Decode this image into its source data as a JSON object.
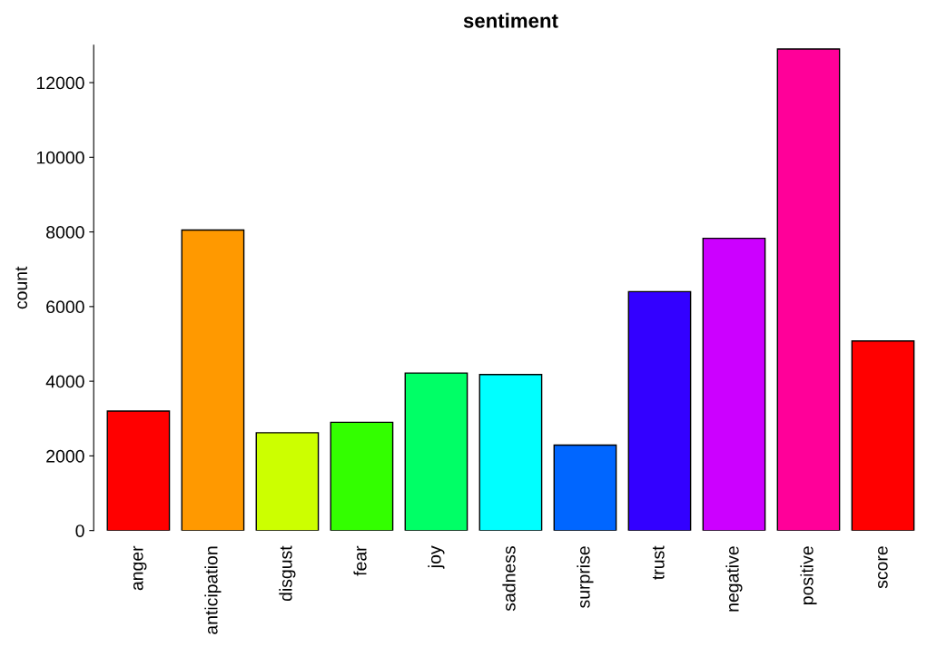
{
  "chart_data": {
    "type": "bar",
    "title": "sentiment",
    "ylabel": "count",
    "categories": [
      "anger",
      "anticipation",
      "disgust",
      "fear",
      "joy",
      "sadness",
      "surprise",
      "trust",
      "negative",
      "positive",
      "score"
    ],
    "values": [
      3200,
      8050,
      2620,
      2900,
      4220,
      4180,
      2290,
      6400,
      7830,
      12900,
      5080
    ],
    "colors": [
      "#ff0000",
      "#ff9900",
      "#ccff00",
      "#33ff00",
      "#00ff66",
      "#00ffff",
      "#0066ff",
      "#3300ff",
      "#cc00ff",
      "#ff0099",
      "#ff0000"
    ],
    "ylim": [
      0,
      13000
    ],
    "yticks": [
      0,
      2000,
      4000,
      6000,
      8000,
      10000,
      12000
    ],
    "grid": false,
    "legend": false
  }
}
